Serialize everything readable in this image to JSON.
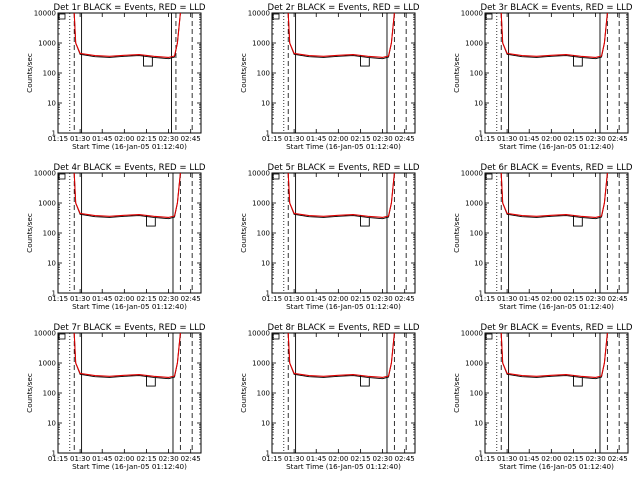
{
  "figure": {
    "background": "#ffffff"
  },
  "chart_data": [
    {
      "type": "line",
      "title": "Det 1r BLACK = Events, RED = LLD",
      "xlabel": "Start Time (16-Jan-05 01:12:40)",
      "ylabel": "Counts/sec",
      "xticks": [
        "01:15",
        "01:30",
        "01:45",
        "02:00",
        "02:15",
        "02:30",
        "02:45"
      ],
      "xlim": [
        "01:15",
        "02:52"
      ],
      "ylim": [
        1,
        10000
      ],
      "yscale": "log",
      "yticks": [
        "1",
        "10",
        "100",
        "1000",
        "10000"
      ],
      "vlines": {
        "dotted": [
          "01:23"
        ],
        "dashed": [
          "01:26",
          "02:35",
          "02:46"
        ],
        "solid": [
          "01:31",
          "02:32"
        ]
      },
      "dip": {
        "start": "02:13",
        "end": "02:19",
        "value": 170
      },
      "rise_end": "02:40",
      "series": [
        {
          "color": "#000000",
          "x": [
            "01:26",
            "01:27",
            "01:30",
            "01:40",
            "01:50",
            "02:00",
            "02:10",
            "02:20",
            "02:30",
            "02:34",
            "02:36",
            "02:38"
          ],
          "y": [
            10000,
            1000,
            420,
            350,
            330,
            360,
            380,
            330,
            300,
            340,
            1000,
            10000
          ]
        },
        {
          "color": "#e00000",
          "x": [
            "01:26",
            "01:27",
            "01:30",
            "01:40",
            "01:50",
            "02:00",
            "02:10",
            "02:20",
            "02:30",
            "02:34",
            "02:36",
            "02:38"
          ],
          "y": [
            10000,
            1000,
            450,
            380,
            360,
            390,
            410,
            360,
            330,
            370,
            1000,
            10000
          ]
        }
      ]
    },
    {
      "type": "line",
      "title": "Det 2r BLACK = Events, RED = LLD",
      "xlabel": "Start Time (16-Jan-05 01:12:40)",
      "ylabel": "Counts/sec",
      "xticks": [
        "01:15",
        "01:30",
        "01:45",
        "02:00",
        "02:15",
        "02:30",
        "02:45"
      ],
      "xlim": [
        "01:15",
        "02:52"
      ],
      "ylim": [
        1,
        10000
      ],
      "yscale": "log",
      "yticks": [
        "1",
        "10",
        "100",
        "1000",
        "10000"
      ],
      "vlines": {
        "dotted": [
          "01:23"
        ],
        "dashed": [
          "01:26",
          "02:38",
          "02:46"
        ],
        "solid": [
          "01:31",
          "02:33"
        ]
      },
      "dip": {
        "start": "02:15",
        "end": "02:21",
        "value": 170
      },
      "rise_end": "02:40",
      "series": [
        {
          "color": "#000000",
          "x": [
            "01:26",
            "01:27",
            "01:30",
            "01:40",
            "01:50",
            "02:00",
            "02:10",
            "02:20",
            "02:30",
            "02:34",
            "02:36",
            "02:38"
          ],
          "y": [
            10000,
            1000,
            420,
            350,
            330,
            360,
            380,
            330,
            300,
            340,
            1000,
            10000
          ]
        },
        {
          "color": "#e00000",
          "x": [
            "01:26",
            "01:27",
            "01:30",
            "01:40",
            "01:50",
            "02:00",
            "02:10",
            "02:20",
            "02:30",
            "02:34",
            "02:36",
            "02:38"
          ],
          "y": [
            10000,
            1000,
            450,
            380,
            360,
            390,
            410,
            360,
            330,
            370,
            1000,
            10000
          ]
        }
      ]
    },
    {
      "type": "line",
      "title": "Det 3r BLACK = Events, RED = LLD",
      "xlabel": "Start Time (16-Jan-05 01:12:40)",
      "ylabel": "Counts/sec",
      "xticks": [
        "01:15",
        "01:30",
        "01:45",
        "02:00",
        "02:15",
        "02:30",
        "02:45"
      ],
      "xlim": [
        "01:15",
        "02:52"
      ],
      "ylim": [
        1,
        10000
      ],
      "yscale": "log",
      "yticks": [
        "1",
        "10",
        "100",
        "1000",
        "10000"
      ],
      "vlines": {
        "dotted": [
          "01:23"
        ],
        "dashed": [
          "01:26",
          "02:38",
          "02:46"
        ],
        "solid": [
          "01:31",
          "02:33"
        ]
      },
      "dip": {
        "start": "02:15",
        "end": "02:21",
        "value": 170
      },
      "rise_end": "02:40",
      "series": [
        {
          "color": "#000000",
          "x": [
            "01:26",
            "01:27",
            "01:30",
            "01:40",
            "01:50",
            "02:00",
            "02:10",
            "02:20",
            "02:30",
            "02:34",
            "02:36",
            "02:38"
          ],
          "y": [
            10000,
            1000,
            420,
            350,
            330,
            360,
            380,
            330,
            300,
            340,
            1000,
            10000
          ]
        },
        {
          "color": "#e00000",
          "x": [
            "01:26",
            "01:27",
            "01:30",
            "01:40",
            "01:50",
            "02:00",
            "02:10",
            "02:20",
            "02:30",
            "02:34",
            "02:36",
            "02:38"
          ],
          "y": [
            10000,
            1000,
            450,
            380,
            360,
            390,
            410,
            360,
            330,
            370,
            1000,
            10000
          ]
        }
      ]
    },
    {
      "type": "line",
      "title": "Det 4r BLACK = Events, RED = LLD",
      "xlabel": "Start Time (16-Jan-05 01:12:40)",
      "ylabel": "Counts/sec",
      "xticks": [
        "01:15",
        "01:30",
        "01:45",
        "02:00",
        "02:15",
        "02:30",
        "02:45"
      ],
      "xlim": [
        "01:15",
        "02:52"
      ],
      "ylim": [
        1,
        10000
      ],
      "yscale": "log",
      "yticks": [
        "1",
        "10",
        "100",
        "1000",
        "10000"
      ],
      "vlines": {
        "dotted": [
          "01:23"
        ],
        "dashed": [
          "01:26",
          "02:38",
          "02:46"
        ],
        "solid": [
          "01:31",
          "02:33"
        ]
      },
      "dip": {
        "start": "02:15",
        "end": "02:21",
        "value": 170
      },
      "rise_end": "02:40",
      "series": [
        {
          "color": "#000000",
          "x": [
            "01:26",
            "01:27",
            "01:30",
            "01:40",
            "01:50",
            "02:00",
            "02:10",
            "02:20",
            "02:30",
            "02:34",
            "02:36",
            "02:38"
          ],
          "y": [
            10000,
            1000,
            420,
            350,
            330,
            360,
            380,
            330,
            300,
            340,
            1000,
            10000
          ]
        },
        {
          "color": "#e00000",
          "x": [
            "01:26",
            "01:27",
            "01:30",
            "01:40",
            "01:50",
            "02:00",
            "02:10",
            "02:20",
            "02:30",
            "02:34",
            "02:36",
            "02:38"
          ],
          "y": [
            10000,
            1000,
            450,
            380,
            360,
            390,
            410,
            360,
            330,
            370,
            1000,
            10000
          ]
        }
      ]
    },
    {
      "type": "line",
      "title": "Det 5r BLACK = Events, RED = LLD",
      "xlabel": "Start Time (16-Jan-05 01:12:40)",
      "ylabel": "Counts/sec",
      "xticks": [
        "01:15",
        "01:30",
        "01:45",
        "02:00",
        "02:15",
        "02:30",
        "02:45"
      ],
      "xlim": [
        "01:15",
        "02:52"
      ],
      "ylim": [
        1,
        10000
      ],
      "yscale": "log",
      "yticks": [
        "1",
        "10",
        "100",
        "1000",
        "10000"
      ],
      "vlines": {
        "dotted": [
          "01:23"
        ],
        "dashed": [
          "01:26",
          "02:38",
          "02:46"
        ],
        "solid": [
          "01:31",
          "02:33"
        ]
      },
      "dip": {
        "start": "02:15",
        "end": "02:21",
        "value": 170
      },
      "rise_end": "02:40",
      "series": [
        {
          "color": "#000000",
          "x": [
            "01:26",
            "01:27",
            "01:30",
            "01:40",
            "01:50",
            "02:00",
            "02:10",
            "02:20",
            "02:30",
            "02:34",
            "02:36",
            "02:38"
          ],
          "y": [
            10000,
            1000,
            420,
            350,
            330,
            360,
            380,
            330,
            300,
            340,
            1000,
            10000
          ]
        },
        {
          "color": "#e00000",
          "x": [
            "01:26",
            "01:27",
            "01:30",
            "01:40",
            "01:50",
            "02:00",
            "02:10",
            "02:20",
            "02:30",
            "02:34",
            "02:36",
            "02:38"
          ],
          "y": [
            10000,
            1000,
            450,
            380,
            360,
            390,
            410,
            360,
            330,
            370,
            1000,
            10000
          ]
        }
      ]
    },
    {
      "type": "line",
      "title": "Det 6r BLACK = Events, RED = LLD",
      "xlabel": "Start Time (16-Jan-05 01:12:40)",
      "ylabel": "Counts/sec",
      "xticks": [
        "01:15",
        "01:30",
        "01:45",
        "02:00",
        "02:15",
        "02:30",
        "02:45"
      ],
      "xlim": [
        "01:15",
        "02:52"
      ],
      "ylim": [
        1,
        10000
      ],
      "yscale": "log",
      "yticks": [
        "1",
        "10",
        "100",
        "1000",
        "10000"
      ],
      "vlines": {
        "dotted": [
          "01:23"
        ],
        "dashed": [
          "01:26",
          "02:38",
          "02:46"
        ],
        "solid": [
          "01:31",
          "02:33"
        ]
      },
      "dip": {
        "start": "02:15",
        "end": "02:21",
        "value": 170
      },
      "rise_end": "02:40",
      "series": [
        {
          "color": "#000000",
          "x": [
            "01:26",
            "01:27",
            "01:30",
            "01:40",
            "01:50",
            "02:00",
            "02:10",
            "02:20",
            "02:30",
            "02:34",
            "02:36",
            "02:38"
          ],
          "y": [
            10000,
            1000,
            420,
            350,
            330,
            360,
            380,
            330,
            300,
            340,
            1000,
            10000
          ]
        },
        {
          "color": "#e00000",
          "x": [
            "01:26",
            "01:27",
            "01:30",
            "01:40",
            "01:50",
            "02:00",
            "02:10",
            "02:20",
            "02:30",
            "02:34",
            "02:36",
            "02:38"
          ],
          "y": [
            10000,
            1000,
            450,
            380,
            360,
            390,
            410,
            360,
            330,
            370,
            1000,
            10000
          ]
        }
      ]
    },
    {
      "type": "line",
      "title": "Det 7r BLACK = Events, RED = LLD",
      "xlabel": "Start Time (16-Jan-05 01:12:40)",
      "ylabel": "Counts/sec",
      "xticks": [
        "01:15",
        "01:30",
        "01:45",
        "02:00",
        "02:15",
        "02:30",
        "02:45"
      ],
      "xlim": [
        "01:15",
        "02:52"
      ],
      "ylim": [
        1,
        10000
      ],
      "yscale": "log",
      "yticks": [
        "1",
        "10",
        "100",
        "1000",
        "10000"
      ],
      "vlines": {
        "dotted": [
          "01:23"
        ],
        "dashed": [
          "01:26",
          "02:38",
          "02:46"
        ],
        "solid": [
          "01:31",
          "02:33"
        ]
      },
      "dip": {
        "start": "02:15",
        "end": "02:21",
        "value": 170
      },
      "rise_end": "02:40",
      "series": [
        {
          "color": "#000000",
          "x": [
            "01:26",
            "01:27",
            "01:30",
            "01:40",
            "01:50",
            "02:00",
            "02:10",
            "02:20",
            "02:30",
            "02:34",
            "02:36",
            "02:38"
          ],
          "y": [
            10000,
            1000,
            420,
            350,
            330,
            360,
            380,
            330,
            300,
            340,
            1000,
            10000
          ]
        },
        {
          "color": "#e00000",
          "x": [
            "01:26",
            "01:27",
            "01:30",
            "01:40",
            "01:50",
            "02:00",
            "02:10",
            "02:20",
            "02:30",
            "02:34",
            "02:36",
            "02:38"
          ],
          "y": [
            10000,
            1000,
            450,
            380,
            360,
            390,
            410,
            360,
            330,
            370,
            1000,
            10000
          ]
        }
      ]
    },
    {
      "type": "line",
      "title": "Det 8r BLACK = Events, RED = LLD",
      "xlabel": "Start Time (16-Jan-05 01:12:40)",
      "ylabel": "Counts/sec",
      "xticks": [
        "01:15",
        "01:30",
        "01:45",
        "02:00",
        "02:15",
        "02:30",
        "02:45"
      ],
      "xlim": [
        "01:15",
        "02:52"
      ],
      "ylim": [
        1,
        10000
      ],
      "yscale": "log",
      "yticks": [
        "1",
        "10",
        "100",
        "1000",
        "10000"
      ],
      "vlines": {
        "dotted": [
          "01:23"
        ],
        "dashed": [
          "01:26",
          "02:38",
          "02:46"
        ],
        "solid": [
          "01:31",
          "02:33"
        ]
      },
      "dip": {
        "start": "02:15",
        "end": "02:21",
        "value": 170
      },
      "rise_end": "02:40",
      "series": [
        {
          "color": "#000000",
          "x": [
            "01:26",
            "01:27",
            "01:30",
            "01:40",
            "01:50",
            "02:00",
            "02:10",
            "02:20",
            "02:30",
            "02:34",
            "02:36",
            "02:38"
          ],
          "y": [
            10000,
            1000,
            420,
            350,
            330,
            360,
            380,
            330,
            300,
            340,
            1000,
            10000
          ]
        },
        {
          "color": "#e00000",
          "x": [
            "01:26",
            "01:27",
            "01:30",
            "01:40",
            "01:50",
            "02:00",
            "02:10",
            "02:20",
            "02:30",
            "02:34",
            "02:36",
            "02:38"
          ],
          "y": [
            10000,
            1000,
            450,
            380,
            360,
            390,
            410,
            360,
            330,
            370,
            1000,
            10000
          ]
        }
      ]
    },
    {
      "type": "line",
      "title": "Det 9r BLACK = Events, RED = LLD",
      "xlabel": "Start Time (16-Jan-05 01:12:40)",
      "ylabel": "Counts/sec",
      "xticks": [
        "01:15",
        "01:30",
        "01:45",
        "02:00",
        "02:15",
        "02:30",
        "02:45"
      ],
      "xlim": [
        "01:15",
        "02:52"
      ],
      "ylim": [
        1,
        10000
      ],
      "yscale": "log",
      "yticks": [
        "1",
        "10",
        "100",
        "1000",
        "10000"
      ],
      "vlines": {
        "dotted": [
          "01:23"
        ],
        "dashed": [
          "01:26",
          "02:38",
          "02:46"
        ],
        "solid": [
          "01:31",
          "02:33"
        ]
      },
      "dip": {
        "start": "02:15",
        "end": "02:21",
        "value": 170
      },
      "rise_end": "02:40",
      "series": [
        {
          "color": "#000000",
          "x": [
            "01:26",
            "01:27",
            "01:30",
            "01:40",
            "01:50",
            "02:00",
            "02:10",
            "02:20",
            "02:30",
            "02:34",
            "02:36",
            "02:38"
          ],
          "y": [
            10000,
            1000,
            420,
            350,
            330,
            360,
            380,
            330,
            300,
            340,
            1000,
            10000
          ]
        },
        {
          "color": "#e00000",
          "x": [
            "01:26",
            "01:27",
            "01:30",
            "01:40",
            "01:50",
            "02:00",
            "02:10",
            "02:20",
            "02:30",
            "02:34",
            "02:36",
            "02:38"
          ],
          "y": [
            10000,
            1000,
            450,
            380,
            360,
            390,
            410,
            360,
            330,
            370,
            1000,
            10000
          ]
        }
      ]
    }
  ]
}
